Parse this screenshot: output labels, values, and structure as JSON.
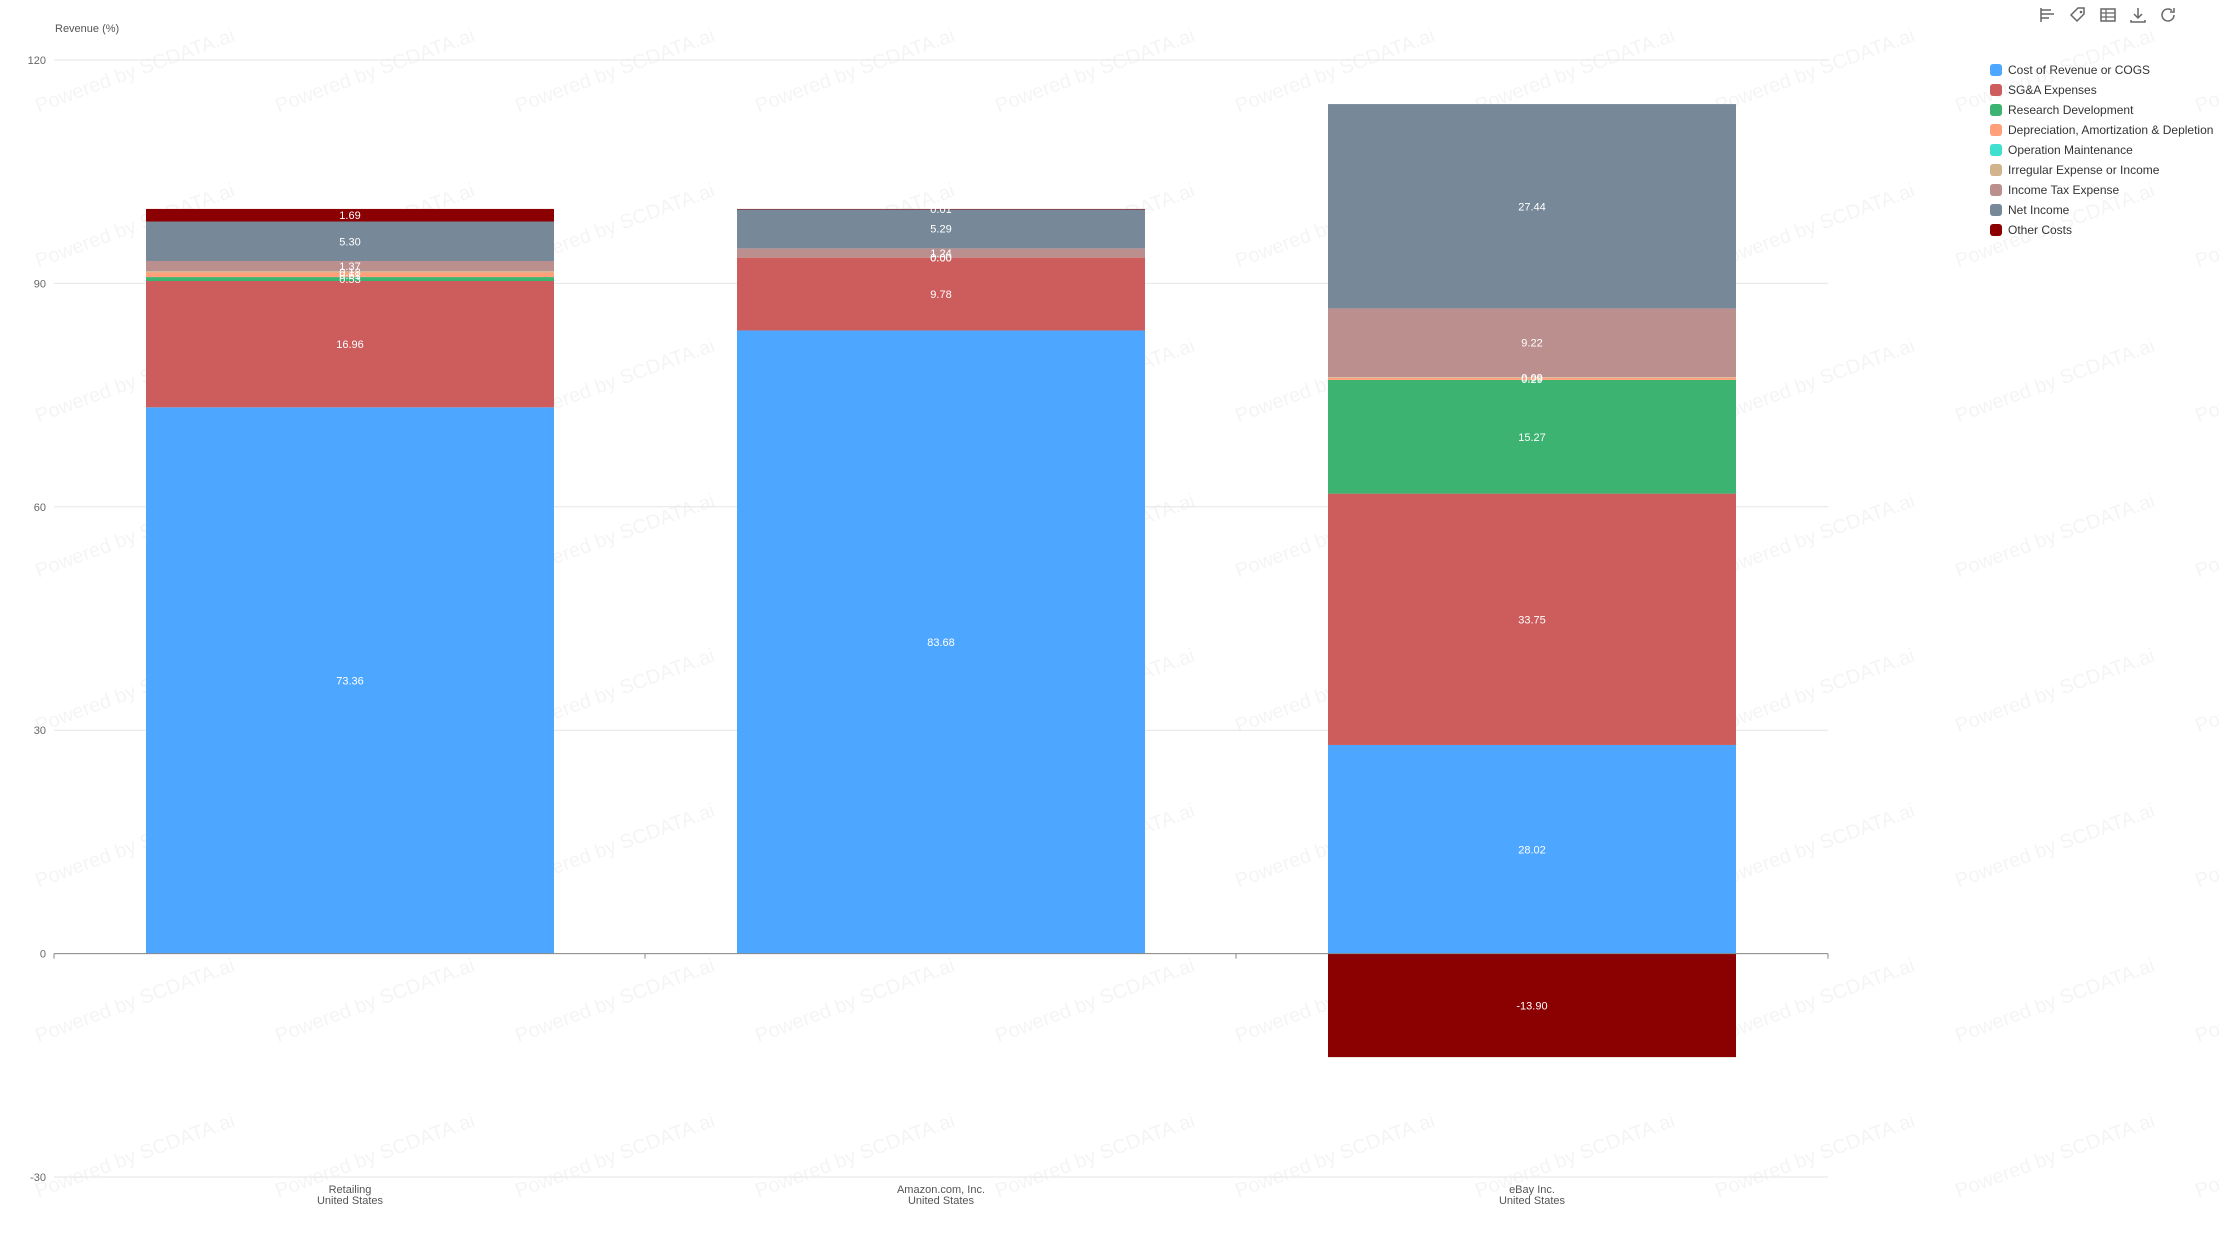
{
  "chart_data": {
    "type": "bar",
    "stacked": true,
    "ylabel": "Revenue (%)",
    "ylim": [
      -30,
      120
    ],
    "yticks": [
      -30,
      0,
      30,
      60,
      90,
      120
    ],
    "grid": true,
    "legend_position": "top-right",
    "categories": [
      [
        "Retailing",
        "United States"
      ],
      [
        "Amazon.com, Inc.",
        "United States"
      ],
      [
        "eBay Inc.",
        "United States"
      ]
    ],
    "series": [
      {
        "name": "Cost of Revenue or COGS",
        "color": "#4da6ff",
        "values": [
          73.36,
          83.68,
          28.02
        ],
        "labels": [
          "73.36",
          "83.68",
          "28.02"
        ]
      },
      {
        "name": "SG&A Expenses",
        "color": "#cd5c5c",
        "values": [
          16.96,
          9.78,
          33.75
        ],
        "labels": [
          "16.96",
          "9.78",
          "33.75"
        ]
      },
      {
        "name": "Research Development",
        "color": "#3cb371",
        "values": [
          0.53,
          0,
          15.27
        ],
        "labels": [
          "0.53",
          "0.00",
          "15.27"
        ]
      },
      {
        "name": "Depreciation, Amortization & Depletion",
        "color": "#ffa07a",
        "values": [
          0.61,
          0,
          0.29
        ],
        "labels": [
          "0.61",
          "0.00",
          "0.29"
        ]
      },
      {
        "name": "Operation Maintenance",
        "color": "#40e0d0",
        "values": [
          0,
          0,
          0
        ],
        "labels": [
          "",
          "",
          ""
        ]
      },
      {
        "name": "Irregular Expense or Income",
        "color": "#d2b48c",
        "values": [
          0.18,
          0,
          0.09
        ],
        "labels": [
          "0.18",
          "",
          "0.09"
        ]
      },
      {
        "name": "Income Tax Expense",
        "color": "#bc8f8f",
        "values": [
          1.37,
          1.24,
          9.22
        ],
        "labels": [
          "1.37",
          "1.24",
          "9.22"
        ]
      },
      {
        "name": "Net Income",
        "color": "#778899",
        "values": [
          5.3,
          5.29,
          27.44
        ],
        "labels": [
          "5.30",
          "5.29",
          "27.44"
        ]
      },
      {
        "name": "Other Costs",
        "color": "#8b0000",
        "values": [
          1.69,
          0.01,
          -13.9
        ],
        "labels": [
          "1.69",
          "0.01",
          "-13.90"
        ]
      }
    ],
    "watermark": "Powered by SCDATA.ai"
  },
  "toolbar": {
    "icons": [
      "bar-chart-icon",
      "tag-icon",
      "table-icon",
      "download-icon",
      "refresh-icon"
    ]
  }
}
